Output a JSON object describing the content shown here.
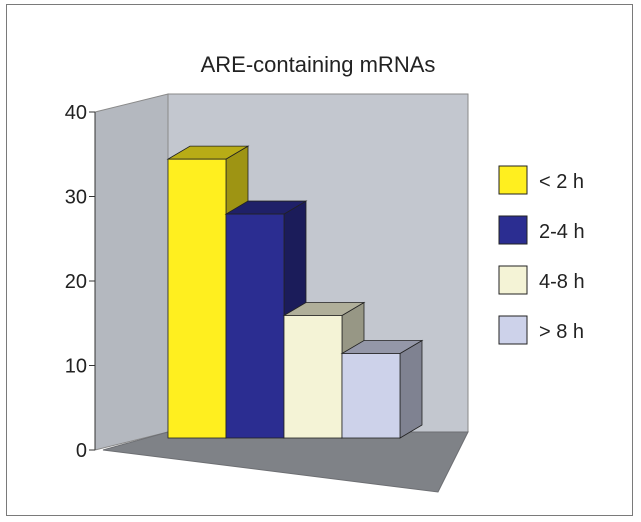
{
  "chart_data": {
    "type": "bar",
    "title": "ARE-containing mRNAs",
    "xlabel": "",
    "ylabel": "",
    "ylim": [
      0,
      40
    ],
    "yticks": [
      "0",
      "10",
      "20",
      "30",
      "40"
    ],
    "categories": [
      "< 2 h",
      "2-4 h",
      "4-8 h",
      "> 8 h"
    ],
    "values": [
      33,
      26.5,
      14.5,
      10
    ],
    "colors": [
      "#ffef1f",
      "#2b2d91",
      "#f4f3d6",
      "#cdd2ea"
    ],
    "legend": [
      {
        "label": "< 2 h",
        "color": "#ffef1f"
      },
      {
        "label": "2-4 h",
        "color": "#2b2d91"
      },
      {
        "label": "4-8 h",
        "color": "#f4f3d6"
      },
      {
        "label": "> 8 h",
        "color": "#cdd2ea"
      }
    ],
    "legend_position": "right",
    "grid": false,
    "style": "3d"
  }
}
